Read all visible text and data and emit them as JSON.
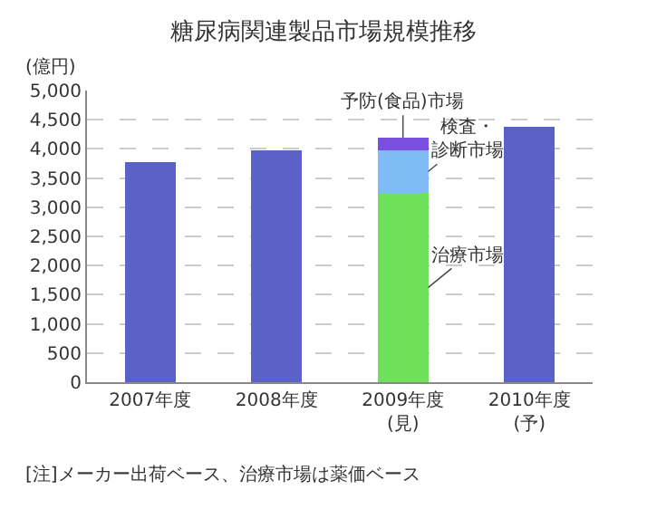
{
  "chart_data": {
    "type": "bar",
    "title": "糖尿病関連製品市場規模推移",
    "ylabel": "(億円)",
    "categories": [
      "2007年度",
      "2008年度",
      "2009年度\n(見)",
      "2010年度\n(予)"
    ],
    "stacked": true,
    "legend": false,
    "grid": "y",
    "line_style": "dashed",
    "series": [
      {
        "color": "#5a62c8",
        "values": [
          3780,
          3980,
          null,
          4380
        ]
      },
      {
        "name": "治療市場",
        "color": "#6ee05a",
        "values": [
          null,
          null,
          3250,
          null
        ]
      },
      {
        "name": "検査・診断市場",
        "color": "#7fbcf5",
        "values": [
          null,
          null,
          730,
          null
        ]
      },
      {
        "name": "予防(食品)市場",
        "color": "#7a50e0",
        "values": [
          null,
          null,
          210,
          null
        ]
      }
    ],
    "ylim": [
      0,
      5000
    ],
    "yticks": [
      0,
      500,
      {
        "value": 1000,
        "label": "1,000"
      },
      {
        "value": 1500,
        "label": "1,500"
      },
      {
        "value": 2000,
        "label": "2,000"
      },
      {
        "value": 2500,
        "label": "2,500"
      },
      {
        "value": 3000,
        "label": "3,000"
      },
      {
        "value": 3500,
        "label": "3,500"
      },
      {
        "value": 4000,
        "label": "4,000"
      },
      {
        "value": 4500,
        "label": "4,500"
      },
      {
        "value": 5000,
        "label": "5,000"
      }
    ],
    "annotations": [
      "[注]メーカー出荷ベース、治療市場は薬価ベース"
    ]
  }
}
